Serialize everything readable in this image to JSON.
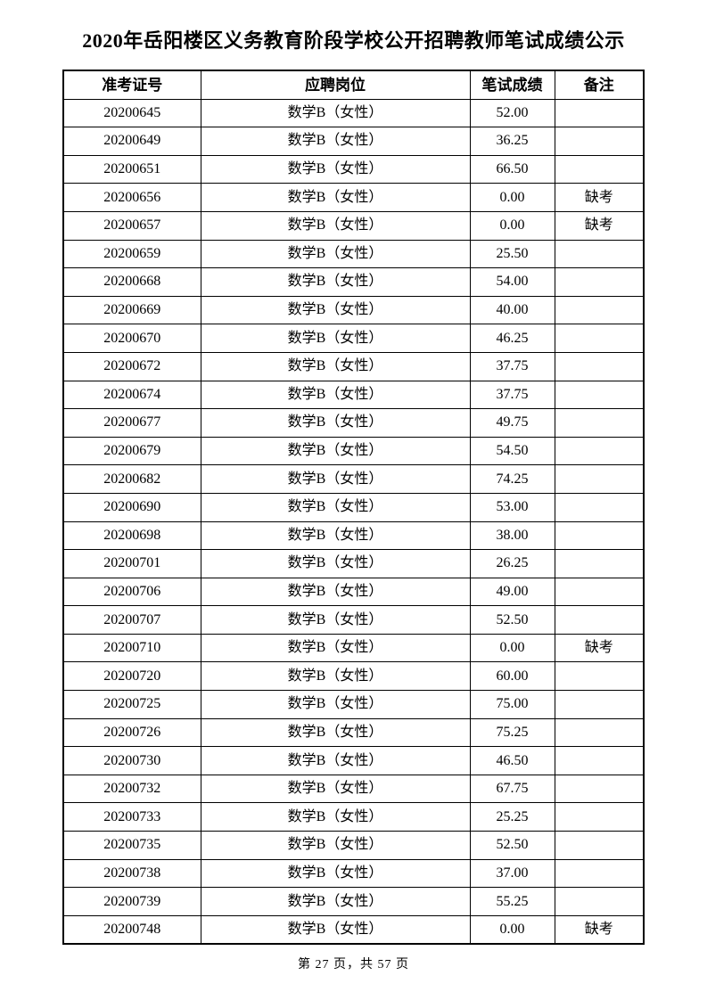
{
  "page": {
    "title": "2020年岳阳楼区义务教育阶段学校公开招聘教师笔试成绩公示",
    "footer": "第 27 页，共 57 页"
  },
  "table": {
    "headers": [
      "准考证号",
      "应聘岗位",
      "笔试成绩",
      "备注"
    ],
    "rows": [
      {
        "id": "20200645",
        "position": "数学B（女性）",
        "score": "52.00",
        "note": ""
      },
      {
        "id": "20200649",
        "position": "数学B（女性）",
        "score": "36.25",
        "note": ""
      },
      {
        "id": "20200651",
        "position": "数学B（女性）",
        "score": "66.50",
        "note": ""
      },
      {
        "id": "20200656",
        "position": "数学B（女性）",
        "score": "0.00",
        "note": "缺考"
      },
      {
        "id": "20200657",
        "position": "数学B（女性）",
        "score": "0.00",
        "note": "缺考"
      },
      {
        "id": "20200659",
        "position": "数学B（女性）",
        "score": "25.50",
        "note": ""
      },
      {
        "id": "20200668",
        "position": "数学B（女性）",
        "score": "54.00",
        "note": ""
      },
      {
        "id": "20200669",
        "position": "数学B（女性）",
        "score": "40.00",
        "note": ""
      },
      {
        "id": "20200670",
        "position": "数学B（女性）",
        "score": "46.25",
        "note": ""
      },
      {
        "id": "20200672",
        "position": "数学B（女性）",
        "score": "37.75",
        "note": ""
      },
      {
        "id": "20200674",
        "position": "数学B（女性）",
        "score": "37.75",
        "note": ""
      },
      {
        "id": "20200677",
        "position": "数学B（女性）",
        "score": "49.75",
        "note": ""
      },
      {
        "id": "20200679",
        "position": "数学B（女性）",
        "score": "54.50",
        "note": ""
      },
      {
        "id": "20200682",
        "position": "数学B（女性）",
        "score": "74.25",
        "note": ""
      },
      {
        "id": "20200690",
        "position": "数学B（女性）",
        "score": "53.00",
        "note": ""
      },
      {
        "id": "20200698",
        "position": "数学B（女性）",
        "score": "38.00",
        "note": ""
      },
      {
        "id": "20200701",
        "position": "数学B（女性）",
        "score": "26.25",
        "note": ""
      },
      {
        "id": "20200706",
        "position": "数学B（女性）",
        "score": "49.00",
        "note": ""
      },
      {
        "id": "20200707",
        "position": "数学B（女性）",
        "score": "52.50",
        "note": ""
      },
      {
        "id": "20200710",
        "position": "数学B（女性）",
        "score": "0.00",
        "note": "缺考"
      },
      {
        "id": "20200720",
        "position": "数学B（女性）",
        "score": "60.00",
        "note": ""
      },
      {
        "id": "20200725",
        "position": "数学B（女性）",
        "score": "75.00",
        "note": ""
      },
      {
        "id": "20200726",
        "position": "数学B（女性）",
        "score": "75.25",
        "note": ""
      },
      {
        "id": "20200730",
        "position": "数学B（女性）",
        "score": "46.50",
        "note": ""
      },
      {
        "id": "20200732",
        "position": "数学B（女性）",
        "score": "67.75",
        "note": ""
      },
      {
        "id": "20200733",
        "position": "数学B（女性）",
        "score": "25.25",
        "note": ""
      },
      {
        "id": "20200735",
        "position": "数学B（女性）",
        "score": "52.50",
        "note": ""
      },
      {
        "id": "20200738",
        "position": "数学B（女性）",
        "score": "37.00",
        "note": ""
      },
      {
        "id": "20200739",
        "position": "数学B（女性）",
        "score": "55.25",
        "note": ""
      },
      {
        "id": "20200748",
        "position": "数学B（女性）",
        "score": "0.00",
        "note": "缺考"
      }
    ]
  }
}
